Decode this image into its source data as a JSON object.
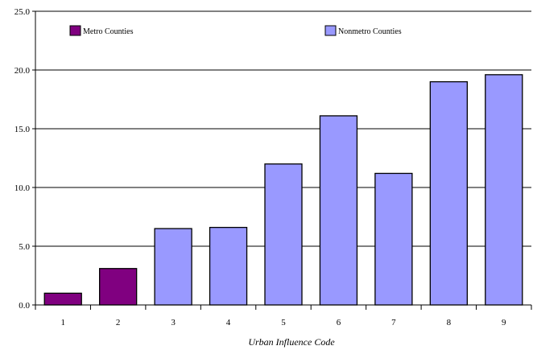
{
  "chart_data": {
    "type": "bar",
    "categories": [
      "1",
      "2",
      "3",
      "4",
      "5",
      "6",
      "7",
      "8",
      "9"
    ],
    "values": [
      1.0,
      3.1,
      6.5,
      6.6,
      12.0,
      16.1,
      11.2,
      19.0,
      19.6
    ],
    "bar_groups": [
      "Metro Counties",
      "Metro Counties",
      "Nonmetro Counties",
      "Nonmetro Counties",
      "Nonmetro Counties",
      "Nonmetro Counties",
      "Nonmetro Counties",
      "Nonmetro Counties",
      "Nonmetro Counties"
    ],
    "title": "",
    "xlabel": "Urban Influence Code",
    "ylabel": "",
    "ylim": [
      0,
      25
    ],
    "yticks": [
      "0.0",
      "5.0",
      "10.0",
      "15.0",
      "20.0",
      "25.0"
    ],
    "grid": true,
    "legend": {
      "placement": "top",
      "entries": [
        {
          "name": "Metro Counties",
          "color": "#800080"
        },
        {
          "name": "Nonmetro Counties",
          "color": "#9999ff"
        }
      ]
    }
  }
}
